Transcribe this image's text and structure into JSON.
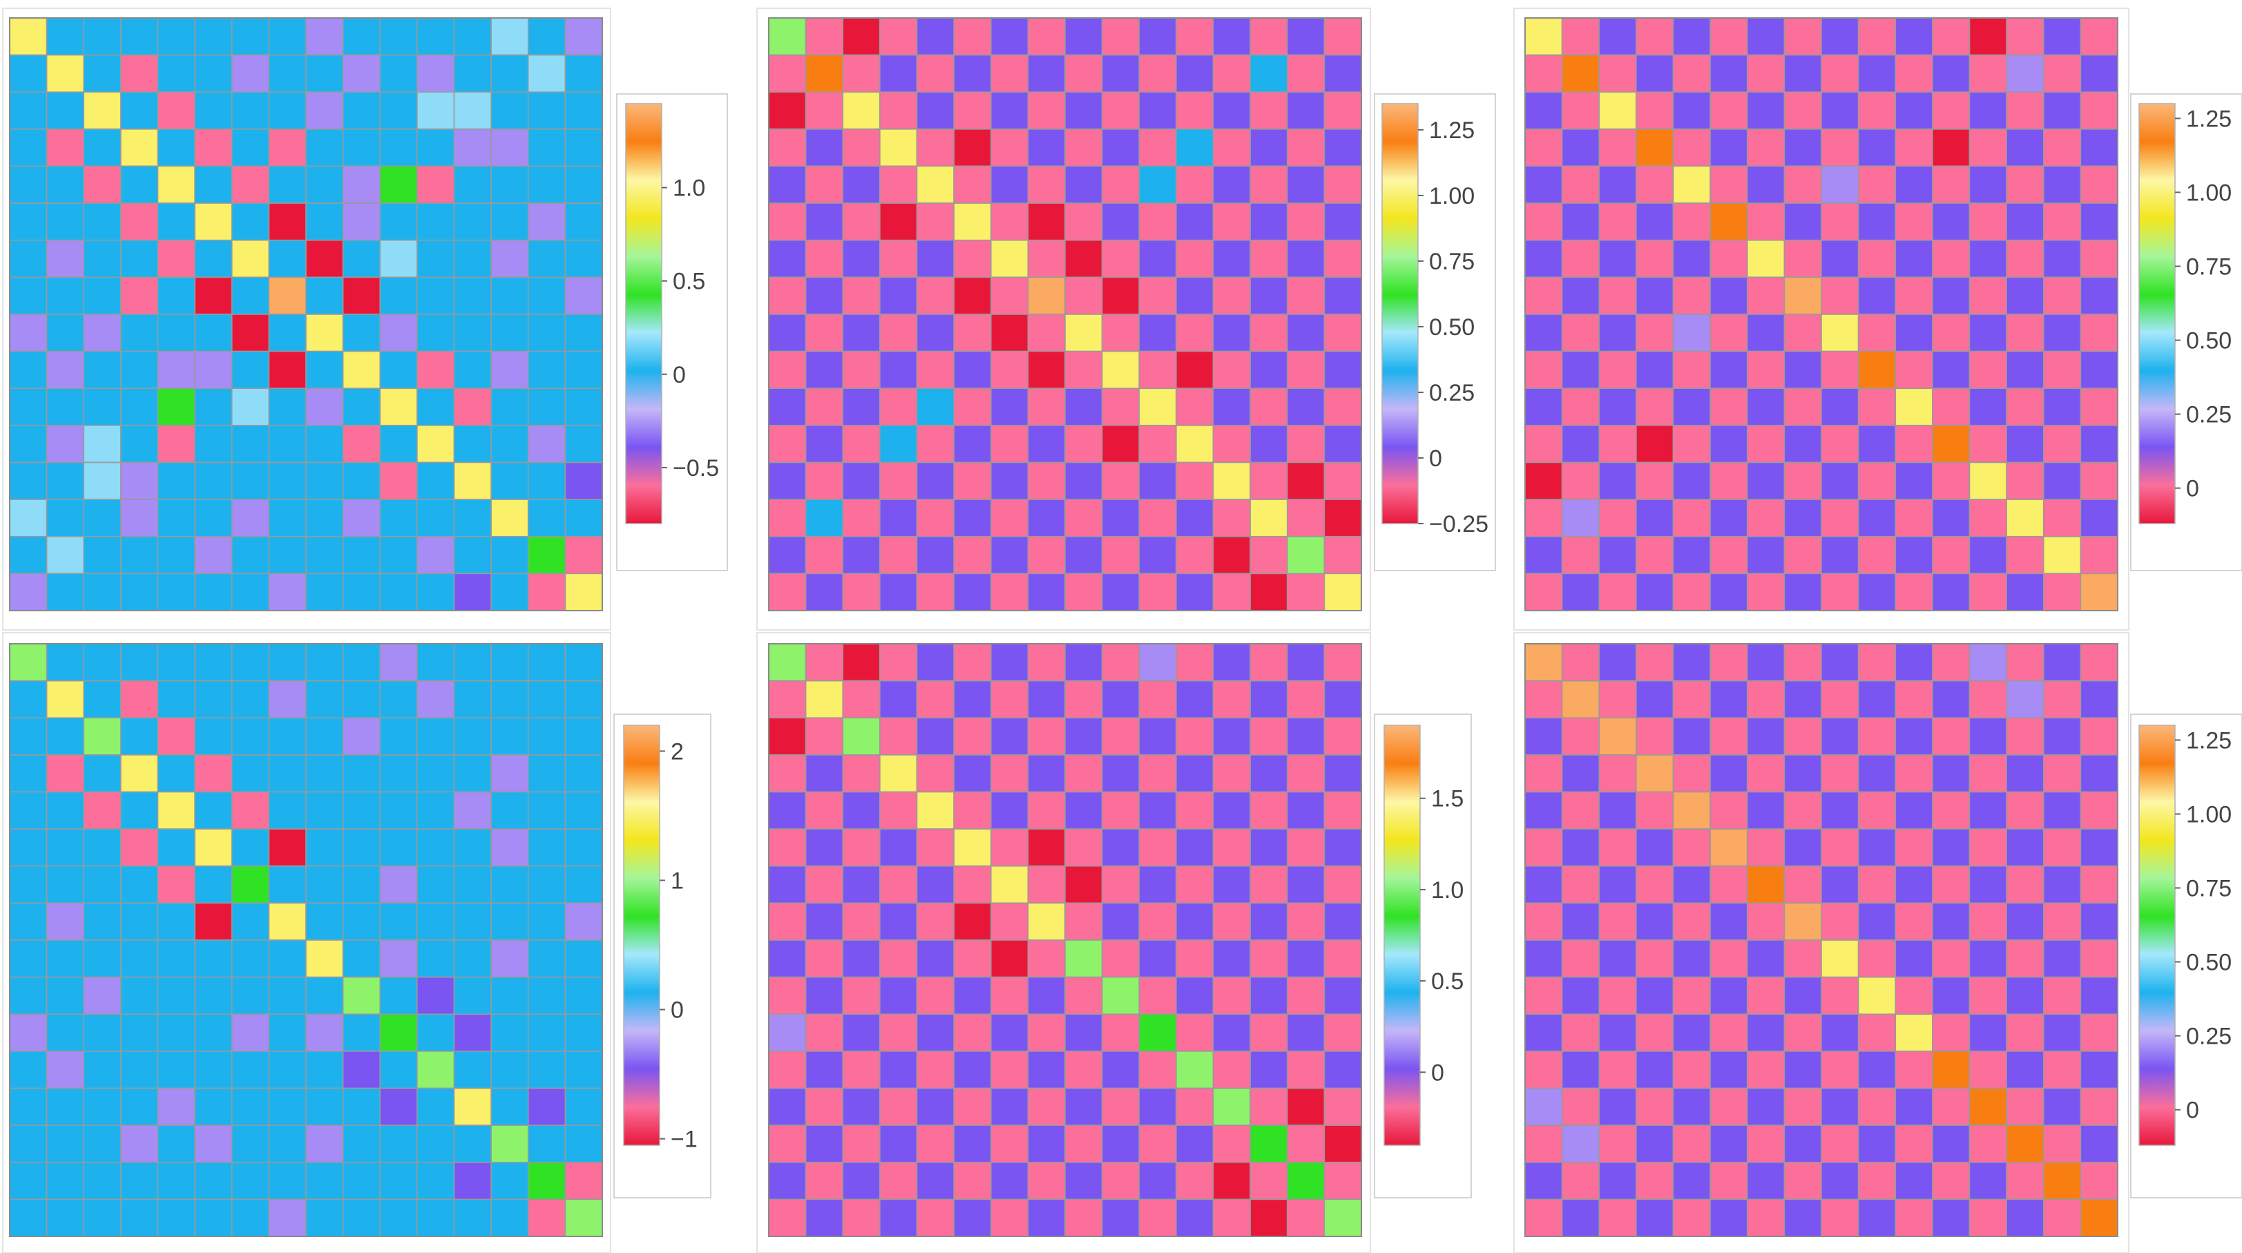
{
  "colors": {
    "red": "#e8173a",
    "pink": "#fb6f9a",
    "lavender": "#a78cf6",
    "purple": "#7a55f2",
    "blue": "#1db2ee",
    "lightblue": "#8fdcf8",
    "green": "#2fe223",
    "lightgreen": "#8ef36a",
    "yellow": "#faf06a",
    "orange": "#f97e12",
    "lightorange": "#fbaa61",
    "legend_stops": [
      "#e8173a",
      "#fb6f9a",
      "#7a55f2",
      "#c5b7f8",
      "#1db2ee",
      "#a6e8fb",
      "#2fe223",
      "#a5f59a",
      "#f3e61e",
      "#fdf7a6",
      "#f97e12",
      "#fbb77a"
    ]
  },
  "chart_data": [
    {
      "type": "heatmap",
      "n": 16,
      "legend_ticks": [
        "1.0",
        "0.5",
        "0",
        "−0.5"
      ],
      "legend_tick_values": [
        1.0,
        0.5,
        0,
        -0.5
      ],
      "legend_range": [
        -0.8,
        1.45
      ],
      "background": "blue",
      "cells": [
        [
          0,
          0,
          "yellow"
        ],
        [
          1,
          1,
          "yellow"
        ],
        [
          2,
          2,
          "yellow"
        ],
        [
          3,
          3,
          "yellow"
        ],
        [
          4,
          4,
          "yellow"
        ],
        [
          5,
          5,
          "yellow"
        ],
        [
          6,
          6,
          "yellow"
        ],
        [
          7,
          7,
          "lightorange"
        ],
        [
          8,
          8,
          "yellow"
        ],
        [
          9,
          9,
          "yellow"
        ],
        [
          10,
          10,
          "yellow"
        ],
        [
          11,
          11,
          "yellow"
        ],
        [
          12,
          12,
          "yellow"
        ],
        [
          13,
          13,
          "yellow"
        ],
        [
          14,
          14,
          "green"
        ],
        [
          15,
          15,
          "yellow"
        ],
        [
          3,
          1,
          "pink"
        ],
        [
          1,
          3,
          "pink"
        ],
        [
          4,
          2,
          "pink"
        ],
        [
          2,
          4,
          "pink"
        ],
        [
          5,
          3,
          "pink"
        ],
        [
          3,
          5,
          "pink"
        ],
        [
          6,
          4,
          "pink"
        ],
        [
          4,
          6,
          "pink"
        ],
        [
          7,
          5,
          "red"
        ],
        [
          5,
          7,
          "red"
        ],
        [
          9,
          7,
          "red"
        ],
        [
          7,
          9,
          "red"
        ],
        [
          8,
          6,
          "red"
        ],
        [
          6,
          8,
          "red"
        ],
        [
          11,
          9,
          "pink"
        ],
        [
          9,
          11,
          "pink"
        ],
        [
          12,
          10,
          "pink"
        ],
        [
          10,
          12,
          "pink"
        ],
        [
          15,
          14,
          "pink"
        ],
        [
          14,
          15,
          "pink"
        ],
        [
          7,
          3,
          "pink"
        ],
        [
          3,
          7,
          "pink"
        ],
        [
          11,
          4,
          "pink"
        ],
        [
          4,
          11,
          "pink"
        ],
        [
          4,
          10,
          "green"
        ],
        [
          10,
          4,
          "green"
        ],
        [
          0,
          8,
          "lavender"
        ],
        [
          8,
          0,
          "lavender"
        ],
        [
          0,
          13,
          "lightblue"
        ],
        [
          13,
          0,
          "lightblue"
        ],
        [
          0,
          15,
          "lavender"
        ],
        [
          15,
          0,
          "lavender"
        ],
        [
          1,
          9,
          "lavender"
        ],
        [
          9,
          1,
          "lavender"
        ],
        [
          1,
          11,
          "lavender"
        ],
        [
          11,
          1,
          "lavender"
        ],
        [
          1,
          14,
          "lightblue"
        ],
        [
          14,
          1,
          "lightblue"
        ],
        [
          2,
          11,
          "lightblue"
        ],
        [
          11,
          2,
          "lightblue"
        ],
        [
          2,
          12,
          "lightblue"
        ],
        [
          12,
          2,
          "lightblue"
        ],
        [
          3,
          12,
          "lavender"
        ],
        [
          12,
          3,
          "lavender"
        ],
        [
          5,
          9,
          "lavender"
        ],
        [
          9,
          5,
          "lavender"
        ],
        [
          5,
          14,
          "lavender"
        ],
        [
          14,
          5,
          "lavender"
        ],
        [
          6,
          10,
          "lightblue"
        ],
        [
          10,
          6,
          "lightblue"
        ],
        [
          6,
          13,
          "lavender"
        ],
        [
          13,
          6,
          "lavender"
        ],
        [
          8,
          10,
          "lavender"
        ],
        [
          10,
          8,
          "lavender"
        ],
        [
          9,
          13,
          "lavender"
        ],
        [
          13,
          9,
          "lavender"
        ],
        [
          12,
          15,
          "purple"
        ],
        [
          15,
          12,
          "purple"
        ],
        [
          2,
          8,
          "lavender"
        ],
        [
          8,
          2,
          "lavender"
        ],
        [
          7,
          15,
          "lavender"
        ],
        [
          15,
          7,
          "lavender"
        ],
        [
          11,
          14,
          "lavender"
        ],
        [
          14,
          11,
          "lavender"
        ],
        [
          3,
          13,
          "lavender"
        ],
        [
          13,
          3,
          "lavender"
        ],
        [
          4,
          9,
          "lavender"
        ],
        [
          9,
          4,
          "lavender"
        ],
        [
          1,
          6,
          "lavender"
        ],
        [
          6,
          1,
          "lavender"
        ]
      ]
    },
    {
      "type": "heatmap",
      "n": 16,
      "legend_ticks": [
        "1.25",
        "1.00",
        "0.75",
        "0.50",
        "0.25",
        "0",
        "−0.25"
      ],
      "legend_tick_values": [
        1.25,
        1.0,
        0.75,
        0.5,
        0.25,
        0,
        -0.25
      ],
      "legend_range": [
        -0.25,
        1.35
      ],
      "background": "purple",
      "checker": "pink",
      "cells": [
        [
          0,
          0,
          "lightgreen"
        ],
        [
          1,
          1,
          "orange"
        ],
        [
          2,
          2,
          "yellow"
        ],
        [
          3,
          3,
          "yellow"
        ],
        [
          4,
          4,
          "yellow"
        ],
        [
          5,
          5,
          "yellow"
        ],
        [
          6,
          6,
          "yellow"
        ],
        [
          7,
          7,
          "lightorange"
        ],
        [
          8,
          8,
          "yellow"
        ],
        [
          9,
          9,
          "yellow"
        ],
        [
          10,
          10,
          "yellow"
        ],
        [
          11,
          11,
          "yellow"
        ],
        [
          12,
          12,
          "yellow"
        ],
        [
          13,
          13,
          "yellow"
        ],
        [
          14,
          14,
          "lightgreen"
        ],
        [
          15,
          15,
          "yellow"
        ],
        [
          0,
          2,
          "red"
        ],
        [
          2,
          0,
          "red"
        ],
        [
          3,
          5,
          "red"
        ],
        [
          5,
          3,
          "red"
        ],
        [
          5,
          7,
          "red"
        ],
        [
          7,
          5,
          "red"
        ],
        [
          6,
          8,
          "red"
        ],
        [
          8,
          6,
          "red"
        ],
        [
          7,
          9,
          "red"
        ],
        [
          9,
          7,
          "red"
        ],
        [
          9,
          11,
          "red"
        ],
        [
          11,
          9,
          "red"
        ],
        [
          12,
          14,
          "red"
        ],
        [
          14,
          12,
          "red"
        ],
        [
          13,
          15,
          "red"
        ],
        [
          15,
          13,
          "red"
        ],
        [
          1,
          13,
          "blue"
        ],
        [
          13,
          1,
          "blue"
        ],
        [
          3,
          11,
          "blue"
        ],
        [
          11,
          3,
          "blue"
        ],
        [
          4,
          10,
          "blue"
        ],
        [
          10,
          4,
          "blue"
        ]
      ]
    },
    {
      "type": "heatmap",
      "n": 16,
      "legend_ticks": [
        "1.25",
        "1.00",
        "0.75",
        "0.50",
        "0.25",
        "0"
      ],
      "legend_tick_values": [
        1.25,
        1.0,
        0.75,
        0.5,
        0.25,
        0
      ],
      "legend_range": [
        -0.12,
        1.3
      ],
      "background": "purple",
      "checker": "pink",
      "cells": [
        [
          0,
          0,
          "yellow"
        ],
        [
          1,
          1,
          "orange"
        ],
        [
          2,
          2,
          "yellow"
        ],
        [
          3,
          3,
          "orange"
        ],
        [
          4,
          4,
          "yellow"
        ],
        [
          5,
          5,
          "orange"
        ],
        [
          6,
          6,
          "yellow"
        ],
        [
          7,
          7,
          "lightorange"
        ],
        [
          8,
          8,
          "yellow"
        ],
        [
          9,
          9,
          "orange"
        ],
        [
          10,
          10,
          "yellow"
        ],
        [
          11,
          11,
          "orange"
        ],
        [
          12,
          12,
          "yellow"
        ],
        [
          13,
          13,
          "yellow"
        ],
        [
          14,
          14,
          "yellow"
        ],
        [
          15,
          15,
          "lightorange"
        ],
        [
          0,
          12,
          "red"
        ],
        [
          12,
          0,
          "red"
        ],
        [
          3,
          11,
          "red"
        ],
        [
          11,
          3,
          "red"
        ],
        [
          4,
          8,
          "lavender"
        ],
        [
          8,
          4,
          "lavender"
        ],
        [
          1,
          13,
          "lavender"
        ],
        [
          13,
          1,
          "lavender"
        ]
      ]
    },
    {
      "type": "heatmap",
      "n": 16,
      "legend_ticks": [
        "2",
        "1",
        "0",
        "−1"
      ],
      "legend_tick_values": [
        2,
        1,
        0,
        -1
      ],
      "legend_range": [
        -1.05,
        2.2
      ],
      "background": "blue",
      "cells": [
        [
          0,
          0,
          "lightgreen"
        ],
        [
          1,
          1,
          "yellow"
        ],
        [
          2,
          2,
          "lightgreen"
        ],
        [
          3,
          3,
          "yellow"
        ],
        [
          4,
          4,
          "yellow"
        ],
        [
          5,
          5,
          "yellow"
        ],
        [
          6,
          6,
          "green"
        ],
        [
          7,
          7,
          "yellow"
        ],
        [
          8,
          8,
          "yellow"
        ],
        [
          9,
          9,
          "lightgreen"
        ],
        [
          10,
          10,
          "green"
        ],
        [
          11,
          11,
          "lightgreen"
        ],
        [
          12,
          12,
          "yellow"
        ],
        [
          13,
          13,
          "lightgreen"
        ],
        [
          14,
          14,
          "green"
        ],
        [
          15,
          15,
          "lightgreen"
        ],
        [
          3,
          1,
          "pink"
        ],
        [
          1,
          3,
          "pink"
        ],
        [
          4,
          2,
          "pink"
        ],
        [
          2,
          4,
          "pink"
        ],
        [
          5,
          3,
          "pink"
        ],
        [
          3,
          5,
          "pink"
        ],
        [
          6,
          4,
          "pink"
        ],
        [
          4,
          6,
          "pink"
        ],
        [
          7,
          5,
          "red"
        ],
        [
          5,
          7,
          "red"
        ],
        [
          14,
          15,
          "pink"
        ],
        [
          15,
          14,
          "pink"
        ],
        [
          0,
          10,
          "lavender"
        ],
        [
          10,
          0,
          "lavender"
        ],
        [
          1,
          7,
          "lavender"
        ],
        [
          7,
          1,
          "lavender"
        ],
        [
          1,
          11,
          "lavender"
        ],
        [
          11,
          1,
          "lavender"
        ],
        [
          2,
          9,
          "lavender"
        ],
        [
          9,
          2,
          "lavender"
        ],
        [
          4,
          12,
          "lavender"
        ],
        [
          12,
          4,
          "lavender"
        ],
        [
          5,
          13,
          "lavender"
        ],
        [
          13,
          5,
          "lavender"
        ],
        [
          6,
          10,
          "lavender"
        ],
        [
          10,
          6,
          "lavender"
        ],
        [
          7,
          15,
          "lavender"
        ],
        [
          15,
          7,
          "lavender"
        ],
        [
          8,
          13,
          "lavender"
        ],
        [
          13,
          8,
          "lavender"
        ],
        [
          9,
          11,
          "purple"
        ],
        [
          11,
          9,
          "purple"
        ],
        [
          10,
          12,
          "purple"
        ],
        [
          12,
          10,
          "purple"
        ],
        [
          12,
          14,
          "purple"
        ],
        [
          14,
          12,
          "purple"
        ],
        [
          8,
          10,
          "lavender"
        ],
        [
          10,
          8,
          "lavender"
        ],
        [
          3,
          13,
          "lavender"
        ],
        [
          13,
          3,
          "lavender"
        ]
      ]
    },
    {
      "type": "heatmap",
      "n": 16,
      "legend_ticks": [
        "1.5",
        "1.0",
        "0.5",
        "0"
      ],
      "legend_tick_values": [
        1.5,
        1.0,
        0.5,
        0
      ],
      "legend_range": [
        -0.4,
        1.9
      ],
      "background": "purple",
      "checker": "pink",
      "cells": [
        [
          0,
          0,
          "lightgreen"
        ],
        [
          1,
          1,
          "yellow"
        ],
        [
          2,
          2,
          "lightgreen"
        ],
        [
          3,
          3,
          "yellow"
        ],
        [
          4,
          4,
          "yellow"
        ],
        [
          5,
          5,
          "yellow"
        ],
        [
          6,
          6,
          "yellow"
        ],
        [
          7,
          7,
          "yellow"
        ],
        [
          8,
          8,
          "lightgreen"
        ],
        [
          9,
          9,
          "lightgreen"
        ],
        [
          10,
          10,
          "green"
        ],
        [
          11,
          11,
          "lightgreen"
        ],
        [
          12,
          12,
          "lightgreen"
        ],
        [
          13,
          13,
          "green"
        ],
        [
          14,
          14,
          "green"
        ],
        [
          15,
          15,
          "lightgreen"
        ],
        [
          0,
          2,
          "red"
        ],
        [
          2,
          0,
          "red"
        ],
        [
          5,
          7,
          "red"
        ],
        [
          7,
          5,
          "red"
        ],
        [
          6,
          8,
          "red"
        ],
        [
          8,
          6,
          "red"
        ],
        [
          13,
          15,
          "red"
        ],
        [
          15,
          13,
          "red"
        ],
        [
          12,
          14,
          "red"
        ],
        [
          14,
          12,
          "red"
        ],
        [
          0,
          10,
          "lavender"
        ],
        [
          10,
          0,
          "lavender"
        ]
      ]
    },
    {
      "type": "heatmap",
      "n": 16,
      "legend_ticks": [
        "1.25",
        "1.00",
        "0.75",
        "0.50",
        "0.25",
        "0"
      ],
      "legend_tick_values": [
        1.25,
        1.0,
        0.75,
        0.5,
        0.25,
        0
      ],
      "legend_range": [
        -0.12,
        1.3
      ],
      "background": "purple",
      "checker": "pink",
      "cells": [
        [
          0,
          0,
          "lightorange"
        ],
        [
          1,
          1,
          "lightorange"
        ],
        [
          2,
          2,
          "lightorange"
        ],
        [
          3,
          3,
          "lightorange"
        ],
        [
          4,
          4,
          "lightorange"
        ],
        [
          5,
          5,
          "lightorange"
        ],
        [
          6,
          6,
          "orange"
        ],
        [
          7,
          7,
          "lightorange"
        ],
        [
          8,
          8,
          "yellow"
        ],
        [
          9,
          9,
          "yellow"
        ],
        [
          10,
          10,
          "yellow"
        ],
        [
          11,
          11,
          "orange"
        ],
        [
          12,
          12,
          "orange"
        ],
        [
          13,
          13,
          "orange"
        ],
        [
          14,
          14,
          "orange"
        ],
        [
          15,
          15,
          "orange"
        ],
        [
          0,
          12,
          "lavender"
        ],
        [
          12,
          0,
          "lavender"
        ],
        [
          1,
          13,
          "lavender"
        ],
        [
          13,
          1,
          "lavender"
        ]
      ]
    }
  ]
}
